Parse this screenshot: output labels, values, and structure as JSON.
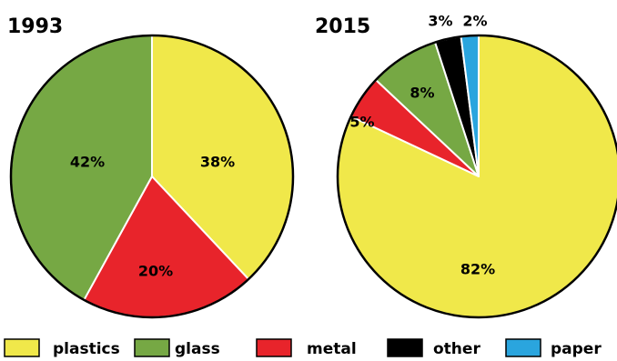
{
  "chart_data": [
    {
      "type": "pie",
      "title": "1993",
      "slices": [
        {
          "name": "plastics",
          "value": 38,
          "label": "38%"
        },
        {
          "name": "metal",
          "value": 20,
          "label": "20%"
        },
        {
          "name": "glass",
          "value": 42,
          "label": "42%"
        }
      ]
    },
    {
      "type": "pie",
      "title": "2015",
      "slices": [
        {
          "name": "plastics",
          "value": 82,
          "label": "82%"
        },
        {
          "name": "metal",
          "value": 5,
          "label": "5%"
        },
        {
          "name": "glass",
          "value": 8,
          "label": "8%"
        },
        {
          "name": "other",
          "value": 3,
          "label": "3%"
        },
        {
          "name": "paper",
          "value": 2,
          "label": "2%"
        }
      ]
    }
  ],
  "legend": {
    "position": "bottom",
    "items": [
      {
        "name": "plastics",
        "label": "plastics"
      },
      {
        "name": "glass",
        "label": "glass"
      },
      {
        "name": "metal",
        "label": "metal"
      },
      {
        "name": "other",
        "label": "other"
      },
      {
        "name": "paper",
        "label": "paper"
      }
    ]
  },
  "colors": {
    "plastics": "#f0e84a",
    "glass": "#76a844",
    "metal": "#e8242b",
    "other": "#000000",
    "paper": "#2aa5de"
  }
}
